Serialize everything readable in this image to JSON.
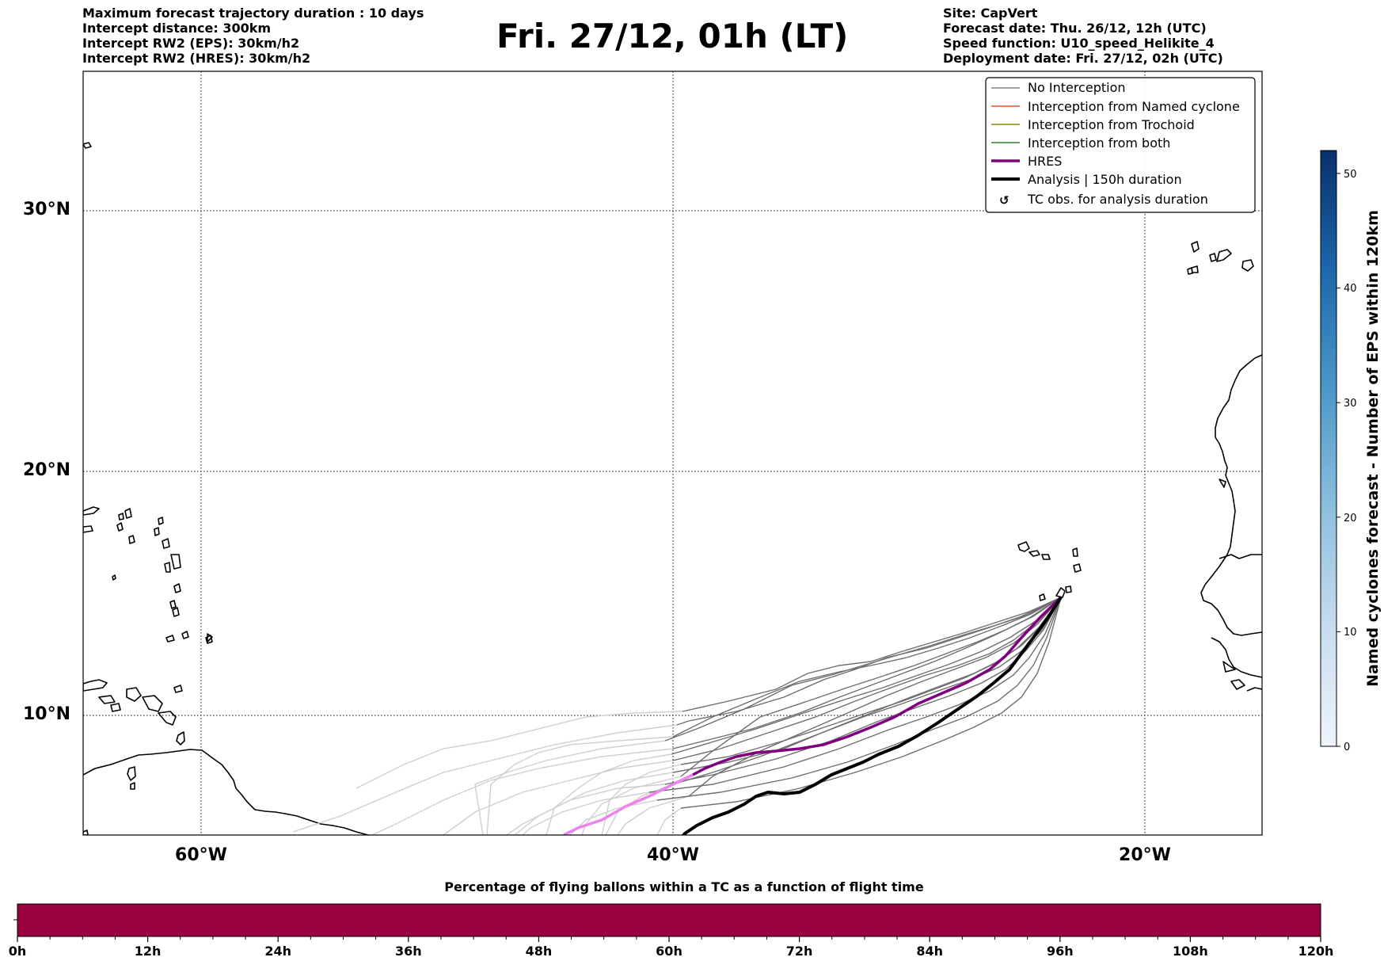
{
  "header": {
    "left": [
      "Maximum forecast trajectory duration : 10 days",
      "Intercept distance: 300km",
      "Intercept RW2 (EPS):  30km/h2",
      "Intercept RW2 (HRES): 30km/h2"
    ],
    "title": "Fri. 27/12, 01h (LT)",
    "right": [
      "Site: CapVert",
      "Forecast date: Thu. 26/12, 12h (UTC)",
      "Speed function: U10_speed_Helikite_4",
      "Deployment date: Fri. 27/12, 02h (UTC)"
    ]
  },
  "map": {
    "lat_labels": [
      "30°N",
      "20°N",
      "10°N"
    ],
    "lon_labels": [
      "60°W",
      "40°W",
      "20°W"
    ],
    "gridlines": "dotted"
  },
  "legend": {
    "items": [
      {
        "label": "No Interception",
        "color": "#808080"
      },
      {
        "label": "Interception from Named cyclone",
        "color": "#e8532b"
      },
      {
        "label": "Interception from Trochoid",
        "color": "#8b8b00"
      },
      {
        "label": "Interception from both",
        "color": "#2e8b2e"
      },
      {
        "label": "HRES",
        "color": "#800080"
      },
      {
        "label": "Analysis | 150h duration",
        "color": "#000000"
      },
      {
        "label": "TC obs. for analysis duration",
        "symbol": "↺"
      }
    ]
  },
  "colorbar": {
    "label": "Named cyclones forecast - Number of EPS within 120km",
    "ticks": [
      "0",
      "10",
      "20",
      "30",
      "40",
      "50"
    ],
    "min": 0,
    "max": 52,
    "colors": [
      "#eef4fb",
      "#08306b"
    ]
  },
  "timebar": {
    "title": "Percentage of flying ballons within a TC as a function of flight time",
    "ticks": [
      "0h",
      "12h",
      "24h",
      "36h",
      "48h",
      "60h",
      "72h",
      "84h",
      "96h",
      "108h",
      "120h"
    ],
    "fill_color": "#9b0040"
  }
}
